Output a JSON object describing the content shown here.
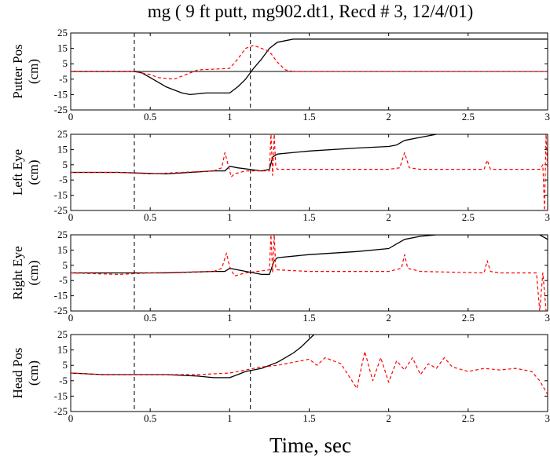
{
  "figure": {
    "title": "mg ( 9 ft putt, mg902.dt1, Recd # 3, 12/4/01)",
    "xlabel": "Time, sec"
  },
  "colors": {
    "solid": "#000000",
    "dashed": "#ff0000",
    "vline": "#333333"
  },
  "chart_data": [
    {
      "type": "line",
      "ylabel": [
        "Putter Pos",
        "(cm)"
      ],
      "xlim": [
        0,
        3
      ],
      "ylim": [
        -25,
        25
      ],
      "xticks": [
        0,
        0.5,
        1,
        1.5,
        2,
        2.5,
        3
      ],
      "yticks": [
        25,
        15,
        5,
        -5,
        -15,
        -25
      ],
      "xtick_labels": [
        "0",
        "0.5",
        "1",
        "1.5",
        "2",
        "2.5",
        "3"
      ],
      "ytick_labels": [
        "25",
        "15",
        "5",
        "-5",
        "-15",
        "-25"
      ],
      "vlines": [
        0.4,
        1.13
      ],
      "hline": 0,
      "series": [
        {
          "style": "solid",
          "x": [
            0,
            0.4,
            0.45,
            0.5,
            0.6,
            0.7,
            0.75,
            0.85,
            1,
            1.05,
            1.1,
            1.15,
            1.2,
            1.25,
            1.3,
            1.4,
            1.5,
            2,
            2.5,
            3
          ],
          "y": [
            0,
            0,
            -1,
            -4,
            -10,
            -14,
            -15,
            -14,
            -14,
            -10,
            -5,
            2,
            8,
            15,
            19,
            21,
            21,
            21,
            21,
            21
          ]
        },
        {
          "style": "dashed",
          "x": [
            0,
            0.4,
            0.5,
            0.55,
            0.65,
            0.7,
            0.8,
            1,
            1.05,
            1.1,
            1.15,
            1.2,
            1.25,
            1.3,
            1.35,
            1.4,
            1.5,
            2,
            3
          ],
          "y": [
            0,
            0,
            -2,
            -4,
            -5,
            -3,
            1,
            2,
            8,
            15,
            17,
            15,
            13,
            6,
            1,
            0,
            0,
            0,
            0
          ]
        }
      ]
    },
    {
      "type": "line",
      "ylabel": [
        "Left Eye",
        "(cm)"
      ],
      "xlim": [
        0,
        3
      ],
      "ylim": [
        -25,
        25
      ],
      "xticks": [
        0,
        0.5,
        1,
        1.5,
        2,
        2.5,
        3
      ],
      "yticks": [
        25,
        15,
        5,
        -5,
        -15,
        -25
      ],
      "xtick_labels": [
        "0",
        "0.5",
        "1",
        "1.5",
        "2",
        "2.5",
        "3"
      ],
      "ytick_labels": [
        "25",
        "15",
        "5",
        "-5",
        "-15",
        "-25"
      ],
      "vlines": [
        0.4,
        1.13
      ],
      "series": [
        {
          "style": "solid",
          "x": [
            0,
            0.3,
            0.6,
            0.9,
            0.97,
            1,
            1.05,
            1.2,
            1.25,
            1.27,
            1.3,
            1.5,
            1.8,
            2,
            2.05,
            2.1,
            2.2,
            2.3
          ],
          "y": [
            0,
            0,
            -1,
            1,
            1,
            4,
            3,
            1,
            2,
            10,
            12,
            14,
            16,
            17,
            18,
            21,
            23,
            25
          ]
        },
        {
          "style": "dashed",
          "x": [
            0,
            0.3,
            0.5,
            0.9,
            0.95,
            0.97,
            0.99,
            1.01,
            1.03,
            1.1,
            1.25,
            1.26,
            1.27,
            1.28,
            1.29,
            1.3,
            1.5,
            2,
            2.07,
            2.1,
            2.13,
            2.2,
            2.6,
            2.62,
            2.64,
            2.7,
            2.95,
            2.97,
            2.98,
            2.99,
            3
          ],
          "y": [
            0,
            0,
            -1,
            1,
            3,
            13,
            5,
            -3,
            -1,
            1,
            1,
            25,
            -2,
            25,
            4,
            2,
            2,
            2,
            3,
            13,
            3,
            2,
            2,
            8,
            2,
            2,
            2,
            5,
            -25,
            25,
            0
          ]
        }
      ]
    },
    {
      "type": "line",
      "ylabel": [
        "Right Eye",
        "(cm)"
      ],
      "xlim": [
        0,
        3
      ],
      "ylim": [
        -25,
        25
      ],
      "xticks": [
        0,
        0.5,
        1,
        1.5,
        2,
        2.5,
        3
      ],
      "yticks": [
        25,
        15,
        5,
        -5,
        -15,
        -25
      ],
      "xtick_labels": [
        "0",
        "0.5",
        "1",
        "1.5",
        "2",
        "2.5",
        "3"
      ],
      "ytick_labels": [
        "25",
        "15",
        "5",
        "-5",
        "-15",
        "-25"
      ],
      "vlines": [
        0.4,
        1.13
      ],
      "series": [
        {
          "style": "solid",
          "x": [
            0,
            0.3,
            0.6,
            0.9,
            0.97,
            1,
            1.05,
            1.2,
            1.25,
            1.28,
            1.3,
            1.5,
            1.8,
            2,
            2.05,
            2.1,
            2.2,
            2.3,
            2.95,
            3
          ],
          "y": [
            0,
            0,
            0,
            1,
            1,
            3,
            2,
            -1,
            -1,
            8,
            10,
            12,
            14,
            16,
            19,
            22,
            24,
            25,
            25,
            22
          ]
        },
        {
          "style": "dashed",
          "x": [
            0,
            0.3,
            0.5,
            0.9,
            0.95,
            0.98,
            1.0,
            1.03,
            1.1,
            1.25,
            1.26,
            1.27,
            1.28,
            1.29,
            1.3,
            1.5,
            1.8,
            2,
            2.08,
            2.1,
            2.12,
            2.2,
            2.6,
            2.62,
            2.64,
            2.7,
            2.93,
            2.95,
            2.97,
            2.99
          ],
          "y": [
            0,
            -1,
            0,
            1,
            3,
            13,
            4,
            -2,
            0,
            2,
            25,
            0,
            25,
            3,
            2,
            1,
            1,
            1,
            3,
            12,
            3,
            1,
            0,
            8,
            1,
            0,
            0,
            -25,
            0,
            -25
          ]
        }
      ]
    },
    {
      "type": "line",
      "ylabel": [
        "Head Pos",
        "(cm)"
      ],
      "xlim": [
        0,
        3
      ],
      "ylim": [
        -25,
        25
      ],
      "xticks": [
        0,
        0.5,
        1,
        1.5,
        2,
        2.5,
        3
      ],
      "yticks": [
        25,
        15,
        5,
        -5,
        -15,
        -25
      ],
      "xtick_labels": [
        "0",
        "0.5",
        "1",
        "1.5",
        "2",
        "2.5",
        "3"
      ],
      "ytick_labels": [
        "25",
        "15",
        "5",
        "-5",
        "-15",
        "-25"
      ],
      "vlines": [
        0.4,
        1.13
      ],
      "series": [
        {
          "style": "solid",
          "x": [
            0,
            0.2,
            0.4,
            0.6,
            0.8,
            0.9,
            1,
            1.05,
            1.1,
            1.2,
            1.3,
            1.35,
            1.4,
            1.45,
            1.5,
            1.53
          ],
          "y": [
            0,
            -1,
            -1,
            -1,
            -2,
            -3,
            -3,
            -1,
            1,
            3,
            7,
            10,
            13,
            17,
            22,
            25
          ]
        },
        {
          "style": "dashed",
          "x": [
            0,
            0.2,
            0.4,
            0.6,
            0.8,
            1,
            1.1,
            1.2,
            1.3,
            1.4,
            1.45,
            1.5,
            1.55,
            1.6,
            1.65,
            1.7,
            1.75,
            1.8,
            1.85,
            1.9,
            1.95,
            2,
            2.05,
            2.1,
            2.15,
            2.2,
            2.25,
            2.3,
            2.35,
            2.4,
            2.5,
            2.6,
            2.7,
            2.8,
            2.9,
            2.95,
            3
          ],
          "y": [
            0,
            -1,
            -1,
            -1,
            -1,
            0,
            2,
            4,
            5,
            7,
            8,
            9,
            5,
            10,
            8,
            6,
            -2,
            -10,
            14,
            -5,
            10,
            -6,
            8,
            2,
            10,
            -1,
            6,
            3,
            10,
            4,
            1,
            3,
            2,
            3,
            1,
            -5,
            -14
          ]
        }
      ]
    }
  ]
}
